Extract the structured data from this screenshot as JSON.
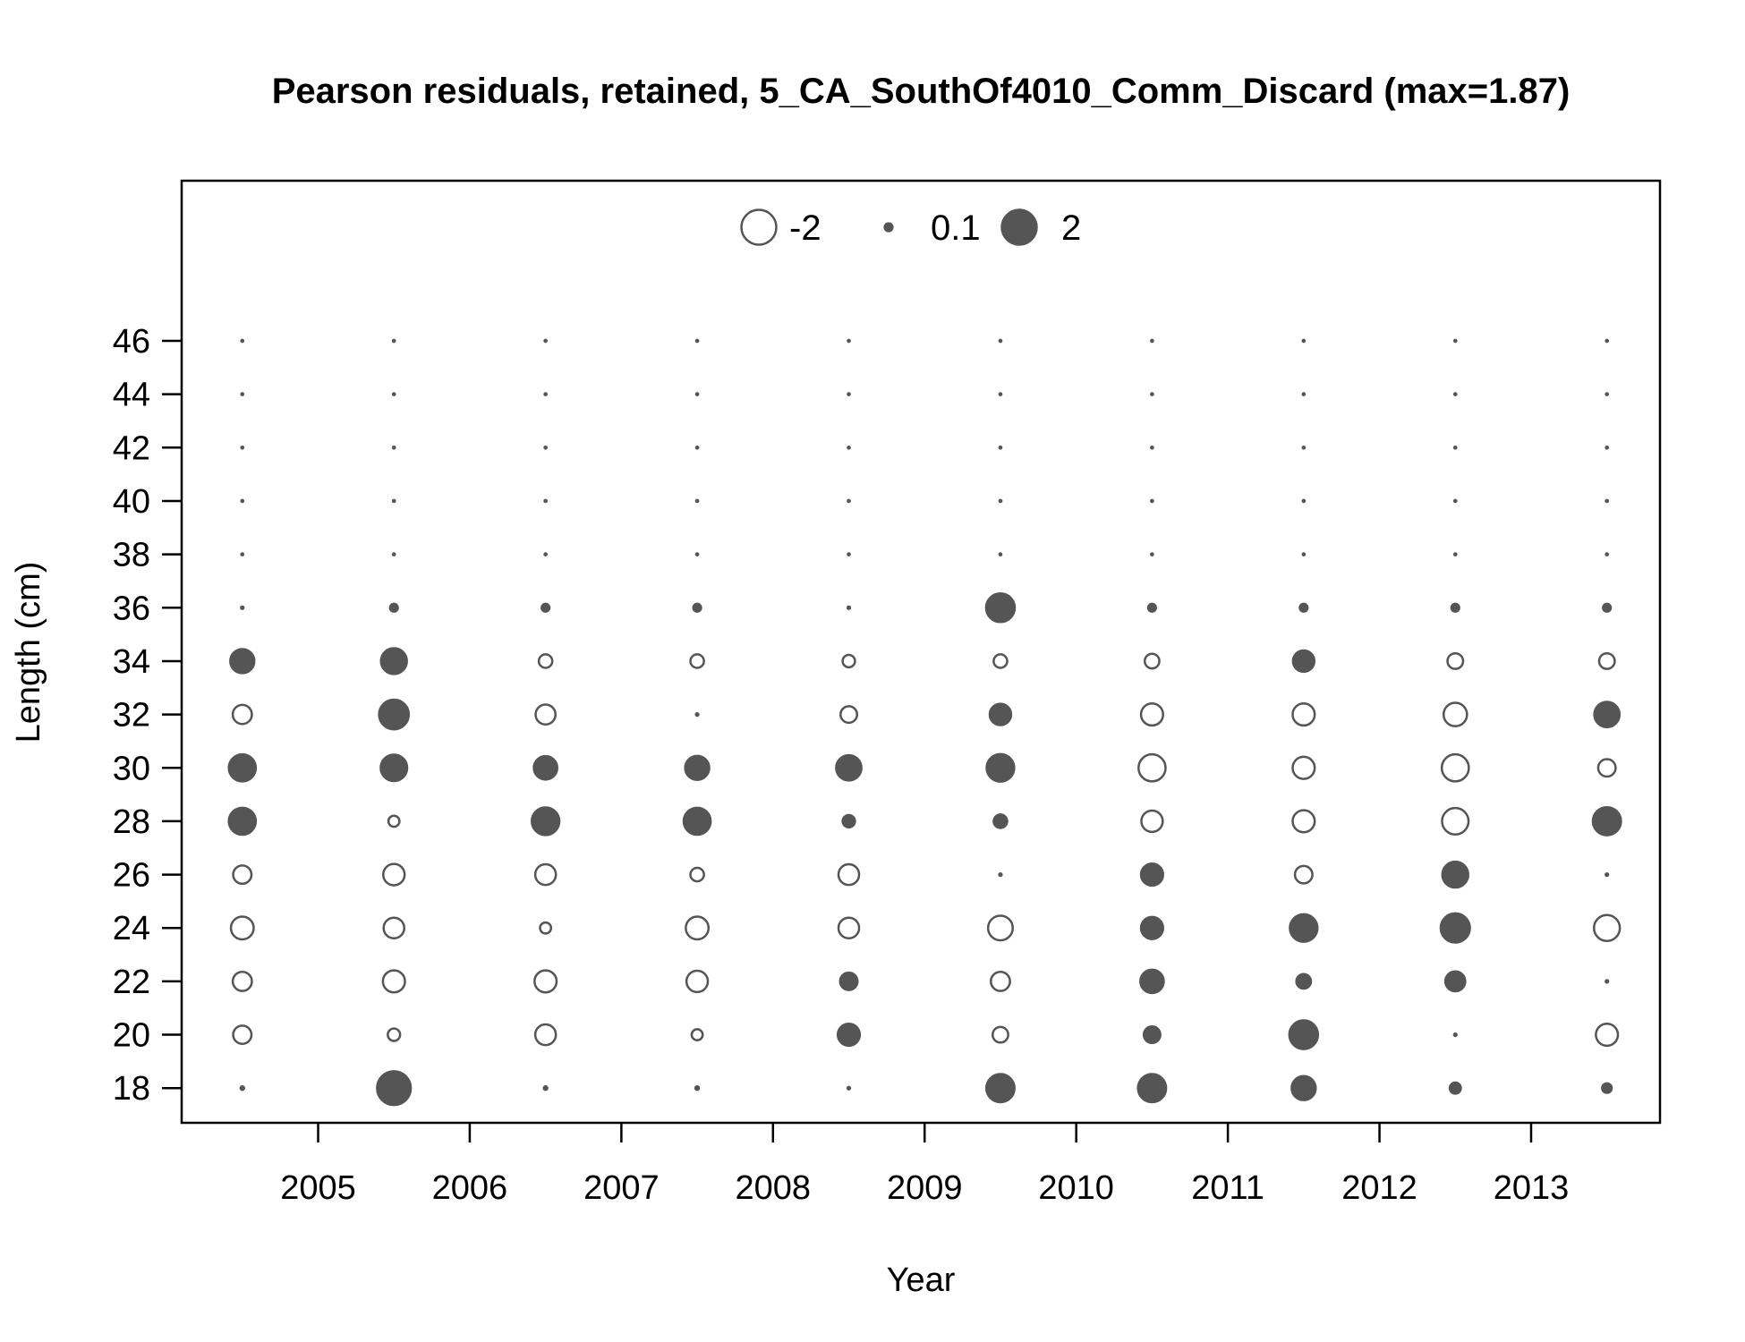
{
  "chart_data": {
    "type": "bubble",
    "title": "Pearson residuals, retained, 5_CA_SouthOf4010_Comm_Discard (max=1.87)",
    "xlabel": "Year",
    "ylabel": "Length (cm)",
    "x_ticks": [
      2005,
      2006,
      2007,
      2008,
      2009,
      2010,
      2011,
      2012,
      2013
    ],
    "y_ticks": [
      18,
      20,
      22,
      24,
      26,
      28,
      30,
      32,
      34,
      36,
      38,
      40,
      42,
      44,
      46
    ],
    "xlim": [
      2004.1,
      2013.85
    ],
    "ylim": [
      16.7,
      52
    ],
    "legend": {
      "placement": "top-center",
      "entries": [
        {
          "label": "-2",
          "value": -2
        },
        {
          "label": "0.1",
          "value": 0.1
        },
        {
          "label": "2",
          "value": 2
        }
      ]
    },
    "colors": {
      "positive_fill": "#555555",
      "negative_fill": "#ffffff",
      "stroke": "#555555"
    },
    "lengths": [
      18,
      20,
      22,
      24,
      26,
      28,
      30,
      32,
      34,
      36,
      38,
      40,
      42,
      44,
      46
    ],
    "series": [
      {
        "x": 2004.5,
        "residuals": [
          0.02,
          -0.55,
          -0.6,
          -0.85,
          -0.55,
          1.2,
          1.2,
          -0.6,
          0.95,
          0.01,
          0.0,
          0.0,
          0.0,
          0.0,
          0.0
        ]
      },
      {
        "x": 2005.5,
        "residuals": [
          1.87,
          -0.25,
          -0.8,
          -0.7,
          -0.75,
          -0.2,
          1.15,
          1.45,
          1.1,
          0.1,
          0.0,
          0.0,
          0.0,
          0.0,
          0.0
        ]
      },
      {
        "x": 2006.5,
        "residuals": [
          0.02,
          -0.7,
          -0.8,
          -0.2,
          -0.7,
          1.25,
          0.9,
          -0.65,
          -0.3,
          0.1,
          0.0,
          0.0,
          0.0,
          0.0,
          0.0
        ]
      },
      {
        "x": 2007.5,
        "residuals": [
          0.02,
          -0.2,
          -0.75,
          -0.85,
          -0.3,
          1.2,
          0.95,
          0.01,
          -0.3,
          0.1,
          0.0,
          0.0,
          0.0,
          0.0,
          0.0
        ]
      },
      {
        "x": 2008.5,
        "residuals": [
          0.01,
          0.8,
          0.5,
          -0.7,
          -0.7,
          0.25,
          1.05,
          -0.45,
          -0.25,
          0.01,
          0.0,
          0.0,
          0.0,
          0.0,
          0.0
        ]
      },
      {
        "x": 2009.5,
        "residuals": [
          1.3,
          -0.4,
          -0.6,
          -1.0,
          0.01,
          0.3,
          1.25,
          0.75,
          -0.3,
          1.35,
          0.0,
          0.0,
          0.0,
          0.0,
          0.0
        ]
      },
      {
        "x": 2010.5,
        "residuals": [
          1.3,
          0.45,
          0.9,
          0.8,
          0.8,
          -0.75,
          -1.2,
          -0.8,
          -0.35,
          0.1,
          0.0,
          0.0,
          0.0,
          0.0,
          0.0
        ]
      },
      {
        "x": 2011.5,
        "residuals": [
          0.95,
          1.35,
          0.35,
          1.25,
          -0.5,
          -0.8,
          -0.8,
          -0.8,
          0.75,
          0.1,
          0.0,
          0.0,
          0.0,
          0.0,
          0.0
        ]
      },
      {
        "x": 2012.5,
        "residuals": [
          0.2,
          0.01,
          0.65,
          1.4,
          1.1,
          -1.15,
          -1.2,
          -0.9,
          -0.4,
          0.1,
          0.0,
          0.0,
          0.0,
          0.0,
          0.0
        ]
      },
      {
        "x": 2013.5,
        "residuals": [
          0.15,
          -0.8,
          0.01,
          -1.1,
          0.01,
          1.3,
          -0.5,
          1.05,
          -0.4,
          0.1,
          0.0,
          0.0,
          0.0,
          0.0,
          0.0
        ]
      }
    ]
  }
}
